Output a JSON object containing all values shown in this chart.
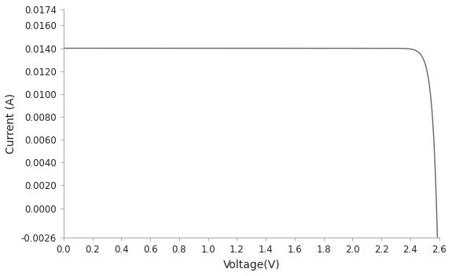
{
  "title": "",
  "xlabel": "Voltage(V)",
  "ylabel": "Current (A)",
  "xlim": [
    0.0,
    2.6
  ],
  "ylim": [
    -0.0026,
    0.0174
  ],
  "xticks": [
    0.0,
    0.2,
    0.4,
    0.6,
    0.8,
    1.0,
    1.2,
    1.4,
    1.6,
    1.8,
    2.0,
    2.2,
    2.4,
    2.6
  ],
  "yticks": [
    -0.0026,
    0.0,
    0.002,
    0.004,
    0.006,
    0.008,
    0.01,
    0.012,
    0.014,
    0.016,
    0.0174
  ],
  "Isc": 0.014,
  "Voc": 2.582,
  "Vt": 0.034,
  "line_color": "#666666",
  "background_color": "#ffffff",
  "font_color": "#222222",
  "xlabel_fontsize": 10,
  "ylabel_fontsize": 10,
  "tick_fontsize": 8.5
}
